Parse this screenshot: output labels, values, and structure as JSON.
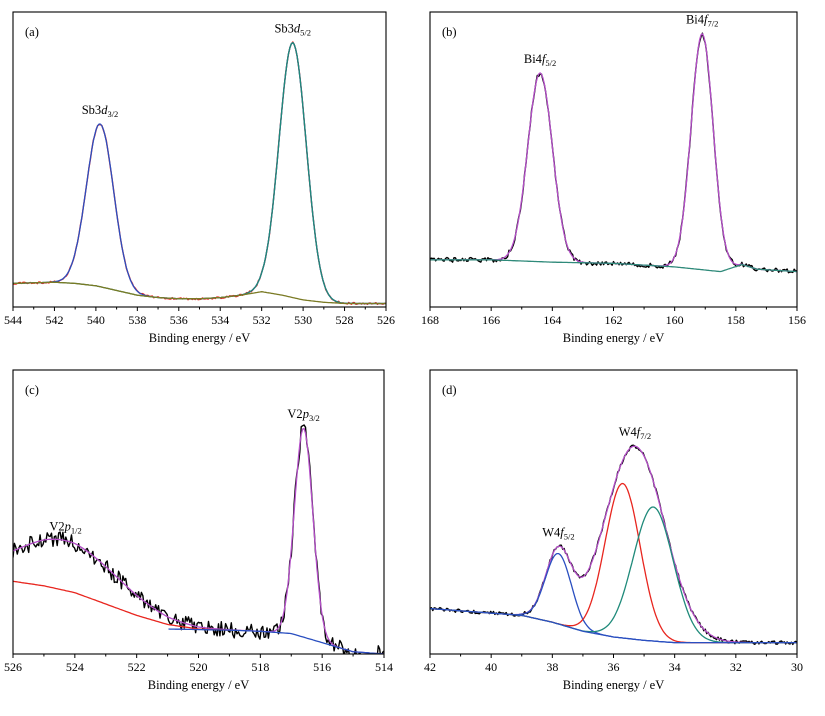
{
  "figure": {
    "panels": [
      {
        "id": "a",
        "tag": "(a)",
        "xlabel": "Binding energy / eV",
        "xticks": [
          "544",
          "542",
          "540",
          "538",
          "536",
          "534",
          "532",
          "530",
          "528",
          "526"
        ]
      },
      {
        "id": "b",
        "tag": "(b)",
        "xlabel": "Binding energy / eV",
        "xticks": [
          "168",
          "166",
          "164",
          "162",
          "160",
          "158",
          "156"
        ]
      },
      {
        "id": "c",
        "tag": "(c)",
        "xlabel": "Binding energy / eV",
        "xticks": [
          "526",
          "524",
          "522",
          "520",
          "518",
          "516",
          "514"
        ]
      },
      {
        "id": "d",
        "tag": "(d)",
        "xlabel": "Binding energy / eV",
        "xticks": [
          "42",
          "40",
          "38",
          "36",
          "34",
          "32",
          "30"
        ]
      }
    ]
  },
  "colors": {
    "raw": "#000000",
    "envelope": "#b44ec8",
    "fit_red": "#e8261f",
    "fit_green": "#1f8a7a",
    "fit_blue": "#2a4fc0",
    "background_olive": "#7a7a24",
    "background_teal": "#2f8a7a",
    "background_red": "#e8261f",
    "background_blue": "#2a4fc0"
  },
  "chart_data": [
    {
      "panel": "(a)",
      "type": "line",
      "xlabel": "Binding energy / eV",
      "x_reversed": true,
      "xlim": [
        526,
        544
      ],
      "ylim": [
        0,
        1.25
      ],
      "y_tick_labels": false,
      "grid": false,
      "baseline": 0.1,
      "peaks": [
        {
          "label": "Sb3",
          "label_sub_letter": "d",
          "label_sub": "3/2",
          "center": 539.8,
          "height": 0.69,
          "fwhm": 1.55
        },
        {
          "label": "Sb3",
          "label_sub_letter": "d",
          "label_sub": "5/2",
          "center": 530.5,
          "height": 1.08,
          "fwhm": 1.55
        }
      ],
      "series": [
        {
          "name": "",
          "role": "raw",
          "color": "#e8261f",
          "noise": 0.004
        },
        {
          "name": "",
          "role": "envelope",
          "color": "#2a4fc0"
        },
        {
          "name": "",
          "role": "component",
          "color": "#1f8a7a",
          "peak_index": 1,
          "center": 530.5,
          "height": 1.08,
          "fwhm": 1.55
        },
        {
          "name": "",
          "role": "background",
          "color": "#7a7a24",
          "points": [
            [
              544,
              0.1
            ],
            [
              542,
              0.105
            ],
            [
              541,
              0.1
            ],
            [
              540,
              0.09
            ],
            [
              539,
              0.07
            ],
            [
              538,
              0.05
            ],
            [
              537,
              0.04
            ],
            [
              536,
              0.035
            ],
            [
              535,
              0.035
            ],
            [
              534,
              0.04
            ],
            [
              533,
              0.05
            ],
            [
              532,
              0.065
            ],
            [
              531,
              0.05
            ],
            [
              530,
              0.03
            ],
            [
              529,
              0.02
            ],
            [
              528,
              0.015
            ],
            [
              526,
              0.015
            ]
          ]
        }
      ]
    },
    {
      "panel": "(b)",
      "type": "line",
      "xlabel": "Binding energy / eV",
      "x_reversed": true,
      "xlim": [
        156,
        168
      ],
      "ylim": [
        0,
        1.25
      ],
      "y_tick_labels": false,
      "grid": false,
      "baseline": 0.2,
      "peaks": [
        {
          "label": "Bi4",
          "label_sub_letter": "f",
          "label_sub": "5/2",
          "center": 164.4,
          "height": 0.8,
          "fwhm": 0.95
        },
        {
          "label": "Bi4",
          "label_sub_letter": "f",
          "label_sub": "7/2",
          "center": 159.1,
          "height": 1.0,
          "fwhm": 0.85
        }
      ],
      "series": [
        {
          "name": "",
          "role": "raw",
          "color": "#000000",
          "noise": 0.01
        },
        {
          "name": "",
          "role": "envelope",
          "color": "#b44ec8"
        },
        {
          "name": "",
          "role": "background",
          "color": "#2f8a7a",
          "points": [
            [
              168,
              0.2
            ],
            [
              166,
              0.2
            ],
            [
              164,
              0.19
            ],
            [
              162,
              0.185
            ],
            [
              160,
              0.17
            ],
            [
              158.5,
              0.15
            ],
            [
              157.8,
              0.18
            ],
            [
              157.3,
              0.16
            ],
            [
              156,
              0.15
            ]
          ]
        }
      ]
    },
    {
      "panel": "(c)",
      "type": "line",
      "xlabel": "Binding energy / eV",
      "x_reversed": true,
      "xlim": [
        514,
        526
      ],
      "ylim": [
        0,
        1.25
      ],
      "y_tick_labels": false,
      "grid": false,
      "baseline": 0.08,
      "peaks": [
        {
          "label": "V2",
          "label_sub_letter": "p",
          "label_sub": "1/2",
          "center": 524.3,
          "height": 0.22,
          "fwhm": 4.0
        },
        {
          "label": "V2",
          "label_sub_letter": "p",
          "label_sub": "3/2",
          "center": 516.6,
          "height": 0.92,
          "fwhm": 0.7
        }
      ],
      "series": [
        {
          "name": "",
          "role": "raw",
          "color": "#000000",
          "noise": 0.035
        },
        {
          "name": "",
          "role": "envelope",
          "color": "#b44ec8"
        },
        {
          "name": "",
          "role": "background",
          "color": "#e8261f",
          "points": [
            [
              526,
              0.32
            ],
            [
              525,
              0.3
            ],
            [
              524,
              0.27
            ],
            [
              523,
              0.22
            ],
            [
              522,
              0.17
            ],
            [
              521,
              0.13
            ],
            [
              520,
              0.11
            ],
            [
              519,
              0.105
            ]
          ]
        },
        {
          "name": "",
          "role": "background",
          "color": "#2a4fc0",
          "points": [
            [
              521,
              0.11
            ],
            [
              519,
              0.105
            ],
            [
              518,
              0.1
            ],
            [
              517,
              0.09
            ],
            [
              516,
              0.05
            ],
            [
              515,
              0.01
            ],
            [
              514,
              0.0
            ]
          ]
        }
      ]
    },
    {
      "panel": "(d)",
      "type": "line",
      "xlabel": "Binding energy / eV",
      "x_reversed": true,
      "xlim": [
        30,
        42
      ],
      "ylim": [
        0,
        1.25
      ],
      "y_tick_labels": false,
      "grid": false,
      "baseline": 0.05,
      "peaks": [
        {
          "label": "W4",
          "label_sub_letter": "f",
          "label_sub": "5/2",
          "center": 37.8,
          "height": 0.31,
          "fwhm": 1.0
        },
        {
          "label": "W4",
          "label_sub_letter": "f",
          "label_sub": "7/2",
          "center": 35.3,
          "height": 0.85,
          "fwhm": 2.3
        }
      ],
      "series": [
        {
          "name": "",
          "role": "raw",
          "color": "#000000",
          "noise": 0.008
        },
        {
          "name": "",
          "role": "envelope",
          "color": "#b44ec8"
        },
        {
          "name": "",
          "role": "component",
          "color": "#2a4fc0",
          "center": 37.8,
          "height": 0.31,
          "fwhm": 1.0
        },
        {
          "name": "",
          "role": "component",
          "color": "#e8261f",
          "center": 35.7,
          "height": 0.68,
          "fwhm": 1.35
        },
        {
          "name": "",
          "role": "component",
          "color": "#1f8a7a",
          "center": 34.7,
          "height": 0.59,
          "fwhm": 1.55
        },
        {
          "name": "",
          "role": "background",
          "color": "#2a4fc0",
          "points": [
            [
              42,
              0.2
            ],
            [
              40,
              0.18
            ],
            [
              39,
              0.17
            ],
            [
              38,
              0.14
            ],
            [
              37,
              0.1
            ],
            [
              36,
              0.075
            ],
            [
              35,
              0.06
            ],
            [
              34,
              0.05
            ],
            [
              32,
              0.05
            ],
            [
              30,
              0.05
            ]
          ]
        }
      ]
    }
  ]
}
